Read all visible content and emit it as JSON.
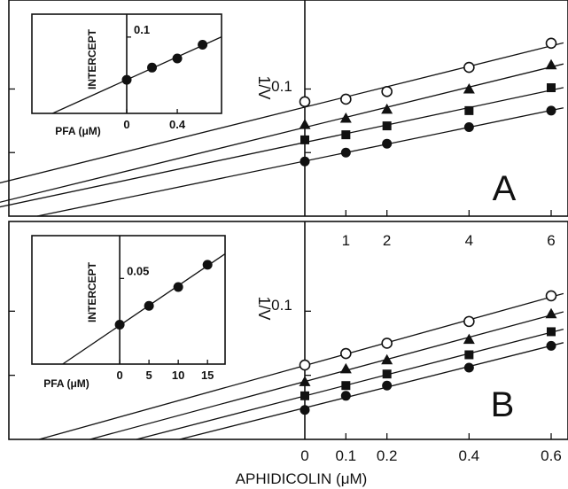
{
  "figure": {
    "xlabel": "APHIDICOLIN (μM)"
  },
  "chart_data": [
    {
      "id": "A",
      "type": "scatter",
      "panel_label": "A",
      "xlabel": "APHIDICOLIN (μM)",
      "ylabel": "1/V",
      "x_tick_labels": [
        "1",
        "2",
        "4",
        "6"
      ],
      "y_tick_labels": [
        "0.1"
      ],
      "xlim": [
        -9,
        6.3
      ],
      "ylim": [
        0.0,
        0.17
      ],
      "y_ticks": [
        0.05,
        0.1
      ],
      "series": [
        {
          "marker": "open-circle",
          "x": [
            0,
            1,
            2,
            4,
            6
          ],
          "y": [
            0.09,
            0.092,
            0.098,
            0.117,
            0.136
          ]
        },
        {
          "marker": "filled-triangle",
          "x": [
            0,
            1,
            2,
            4,
            6
          ],
          "y": [
            0.072,
            0.077,
            0.084,
            0.1,
            0.119
          ]
        },
        {
          "marker": "filled-square",
          "x": [
            0,
            1,
            2,
            4,
            6
          ],
          "y": [
            0.06,
            0.064,
            0.071,
            0.083,
            0.101
          ]
        },
        {
          "marker": "filled-circle",
          "x": [
            0,
            1,
            2,
            4,
            6
          ],
          "y": [
            0.043,
            0.05,
            0.057,
            0.07,
            0.083
          ]
        }
      ],
      "fit_lines": true,
      "inset": {
        "type": "scatter",
        "xlabel": "PFA (μM)",
        "ylabel": "INTERCEPT",
        "x_tick_labels": [
          "0",
          "0.4"
        ],
        "y_tick_labels": [
          "0.1"
        ],
        "xlim": [
          -0.75,
          0.75
        ],
        "ylim": [
          0.0,
          0.13
        ],
        "points": {
          "x": [
            0,
            0.2,
            0.4,
            0.6
          ],
          "y": [
            0.044,
            0.06,
            0.072,
            0.09
          ]
        }
      }
    },
    {
      "id": "B",
      "type": "scatter",
      "panel_label": "B",
      "xlabel": "APHIDICOLIN (μM)",
      "ylabel": "1/V",
      "x_tick_labels": [
        "0",
        "0.1",
        "0.2",
        "0.4",
        "0.6"
      ],
      "y_tick_labels": [
        "0.1"
      ],
      "xlim": [
        -0.9,
        0.63
      ],
      "ylim": [
        0.0,
        0.17
      ],
      "y_ticks": [
        0.05,
        0.1
      ],
      "series": [
        {
          "marker": "open-circle",
          "x": [
            0,
            0.1,
            0.2,
            0.4,
            0.6
          ],
          "y": [
            0.058,
            0.067,
            0.075,
            0.092,
            0.112
          ]
        },
        {
          "marker": "filled-triangle",
          "x": [
            0,
            0.1,
            0.2,
            0.4,
            0.6
          ],
          "y": [
            0.045,
            0.055,
            0.062,
            0.078,
            0.098
          ]
        },
        {
          "marker": "filled-square",
          "x": [
            0,
            0.1,
            0.2,
            0.4,
            0.6
          ],
          "y": [
            0.034,
            0.042,
            0.051,
            0.066,
            0.084
          ]
        },
        {
          "marker": "filled-circle",
          "x": [
            0,
            0.1,
            0.2,
            0.4,
            0.6
          ],
          "y": [
            0.023,
            0.034,
            0.042,
            0.056,
            0.073
          ]
        }
      ],
      "fit_lines": true,
      "inset": {
        "type": "scatter",
        "xlabel": "PFA (μM)",
        "ylabel": "INTERCEPT",
        "x_tick_labels": [
          "0",
          "5",
          "10",
          "15"
        ],
        "y_tick_labels": [
          "0.05"
        ],
        "xlim": [
          -15,
          18
        ],
        "ylim": [
          0.0,
          0.075
        ],
        "points": {
          "x": [
            0,
            5,
            10,
            15
          ],
          "y": [
            0.023,
            0.034,
            0.045,
            0.058
          ]
        }
      }
    }
  ]
}
